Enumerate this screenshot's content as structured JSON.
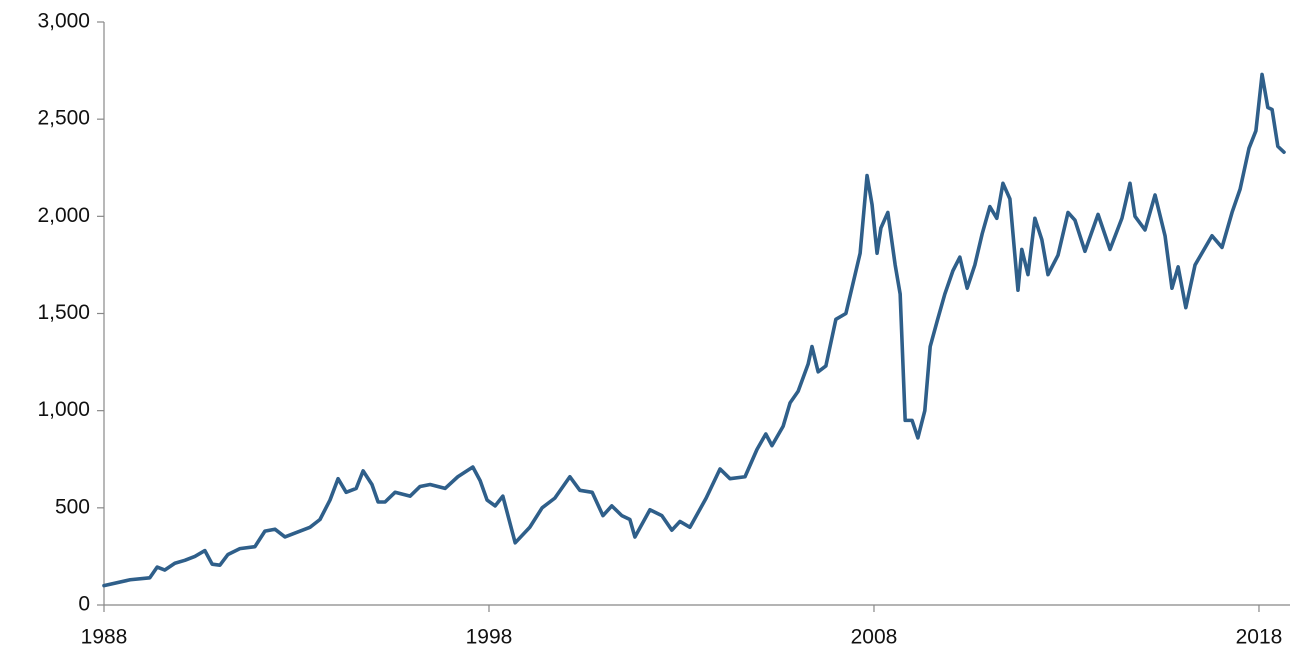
{
  "chart_data": {
    "type": "line",
    "x": [
      1988,
      1988.68,
      1989.19,
      1989.38,
      1989.58,
      1989.84,
      1990.1,
      1990.36,
      1990.62,
      1990.81,
      1991.01,
      1991.22,
      1991.53,
      1991.92,
      1992.18,
      1992.44,
      1992.7,
      1992.96,
      1993.35,
      1993.61,
      1993.87,
      1994.08,
      1994.29,
      1994.55,
      1994.73,
      1994.96,
      1995.12,
      1995.3,
      1995.56,
      1995.95,
      1996.21,
      1996.47,
      1996.86,
      1997.19,
      1997.58,
      1997.77,
      1997.95,
      1998.16,
      1998.36,
      1998.68,
      1999.06,
      1999.38,
      1999.71,
      2000.1,
      2000.36,
      2000.68,
      2000.96,
      2001.19,
      2001.45,
      2001.66,
      2001.79,
      2002.18,
      2002.49,
      2002.75,
      2002.96,
      2003.22,
      2003.64,
      2004,
      2004.26,
      2004.65,
      2004.96,
      2005.19,
      2005.35,
      2005.64,
      2005.82,
      2006.03,
      2006.29,
      2006.39,
      2006.55,
      2006.75,
      2007.01,
      2007.27,
      2007.64,
      2007.82,
      2007.95,
      2008.08,
      2008.18,
      2008.36,
      2008.55,
      2008.68,
      2008.81,
      2008.99,
      2009.14,
      2009.32,
      2009.46,
      2009.64,
      2009.84,
      2010.05,
      2010.23,
      2010.42,
      2010.62,
      2010.81,
      2011.01,
      2011.19,
      2011.35,
      2011.53,
      2011.74,
      2011.84,
      2012,
      2012.18,
      2012.36,
      2012.52,
      2012.78,
      2013.04,
      2013.22,
      2013.48,
      2013.82,
      2014.13,
      2014.44,
      2014.65,
      2014.78,
      2015.04,
      2015.3,
      2015.56,
      2015.74,
      2015.9,
      2016.1,
      2016.34,
      2016.78,
      2017.04,
      2017.3,
      2017.51,
      2017.74,
      2017.92,
      2018.08,
      2018.23,
      2018.34,
      2018.49,
      2018.65
    ],
    "series": [
      {
        "color": "#2f5f8a",
        "values": [
          100,
          130,
          140,
          195,
          180,
          215,
          230,
          250,
          280,
          210,
          205,
          260,
          290,
          300,
          380,
          390,
          350,
          370,
          400,
          440,
          540,
          650,
          580,
          600,
          690,
          620,
          530,
          530,
          580,
          560,
          610,
          620,
          600,
          660,
          710,
          640,
          540,
          510,
          560,
          320,
          400,
          500,
          550,
          660,
          590,
          580,
          460,
          510,
          460,
          440,
          350,
          490,
          460,
          385,
          430,
          400,
          550,
          700,
          650,
          660,
          800,
          880,
          820,
          920,
          1040,
          1100,
          1240,
          1330,
          1200,
          1230,
          1470,
          1500,
          1810,
          2210,
          2060,
          1810,
          1940,
          2020,
          1750,
          1600,
          950,
          950,
          860,
          1000,
          1330,
          1460,
          1600,
          1720,
          1790,
          1630,
          1750,
          1910,
          2050,
          1990,
          2170,
          2090,
          1620,
          1830,
          1700,
          1990,
          1880,
          1700,
          1800,
          2020,
          1980,
          1820,
          2010,
          1830,
          1990,
          2170,
          2000,
          1930,
          2110,
          1900,
          1630,
          1740,
          1530,
          1750,
          1900,
          1840,
          2020,
          2140,
          2350,
          2440,
          2730,
          2560,
          2550,
          2360,
          2330
        ]
      }
    ],
    "xlim": [
      1988,
      2018.65
    ],
    "xticks": [
      1988,
      1998,
      2008,
      2018
    ],
    "ylim": [
      0,
      3000
    ],
    "yticks": [
      0,
      500,
      {
        "value": 1000,
        "label": "1,000"
      },
      {
        "value": 1500,
        "label": "1,500"
      },
      {
        "value": 2000,
        "label": "2,000"
      },
      {
        "value": 2500,
        "label": "2,500"
      },
      {
        "value": 3000,
        "label": "3,000"
      }
    ],
    "grid": false
  }
}
